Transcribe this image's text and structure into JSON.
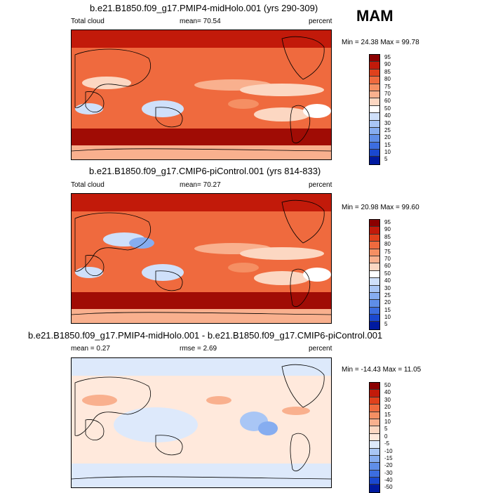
{
  "season": "MAM",
  "panels": [
    {
      "title": "b.e21.B1850.f09_g17.PMIP4-midHolo.001 (yrs 290-309)",
      "left_label": "Total cloud",
      "stat_label": "mean=  70.54",
      "units": "percent",
      "minmax": "Min =  24.38 Max =  99.78",
      "colorbar_labels": [
        "95",
        "90",
        "85",
        "80",
        "75",
        "70",
        "60",
        "50",
        "40",
        "30",
        "25",
        "20",
        "15",
        "10",
        "5"
      ],
      "colorbar_colors": [
        "#8b0000",
        "#c21a0a",
        "#e0411c",
        "#ef6a3e",
        "#f58f63",
        "#f9b08e",
        "#fcd7c2",
        "#ffffff",
        "#cfe0fa",
        "#a9c6f5",
        "#86adf0",
        "#5f8ee8",
        "#3c6de0",
        "#1a48d0",
        "#001aa0"
      ]
    },
    {
      "title": "b.e21.B1850.f09_g17.CMIP6-piControl.001 (yrs 814-833)",
      "left_label": "Total cloud",
      "stat_label": "mean=  70.27",
      "units": "percent",
      "minmax": "Min =  20.98 Max =  99.60",
      "colorbar_labels": [
        "95",
        "90",
        "85",
        "80",
        "75",
        "70",
        "60",
        "50",
        "40",
        "30",
        "25",
        "20",
        "15",
        "10",
        "5"
      ],
      "colorbar_colors": [
        "#8b0000",
        "#c21a0a",
        "#e0411c",
        "#ef6a3e",
        "#f58f63",
        "#f9b08e",
        "#fcd7c2",
        "#ffffff",
        "#cfe0fa",
        "#a9c6f5",
        "#86adf0",
        "#5f8ee8",
        "#3c6de0",
        "#1a48d0",
        "#001aa0"
      ]
    },
    {
      "title": "b.e21.B1850.f09_g17.PMIP4-midHolo.001 - b.e21.B1850.f09_g17.CMIP6-piControl.001",
      "left_label": "mean =   0.27",
      "stat_label": "rmse =   2.69",
      "units": "percent",
      "minmax": "Min = -14.43 Max =  11.05",
      "colorbar_labels": [
        "50",
        "40",
        "30",
        "20",
        "15",
        "10",
        "5",
        "0",
        "-5",
        "-10",
        "-15",
        "-20",
        "-30",
        "-40",
        "-50"
      ],
      "colorbar_colors": [
        "#8b0000",
        "#c21a0a",
        "#e0411c",
        "#ef6a3e",
        "#f58f63",
        "#f9b08e",
        "#fcd7c2",
        "#ffe9dc",
        "#dde9fb",
        "#a9c6f5",
        "#86adf0",
        "#5f8ee8",
        "#3c6de0",
        "#1a48d0",
        "#001aa0"
      ]
    }
  ]
}
